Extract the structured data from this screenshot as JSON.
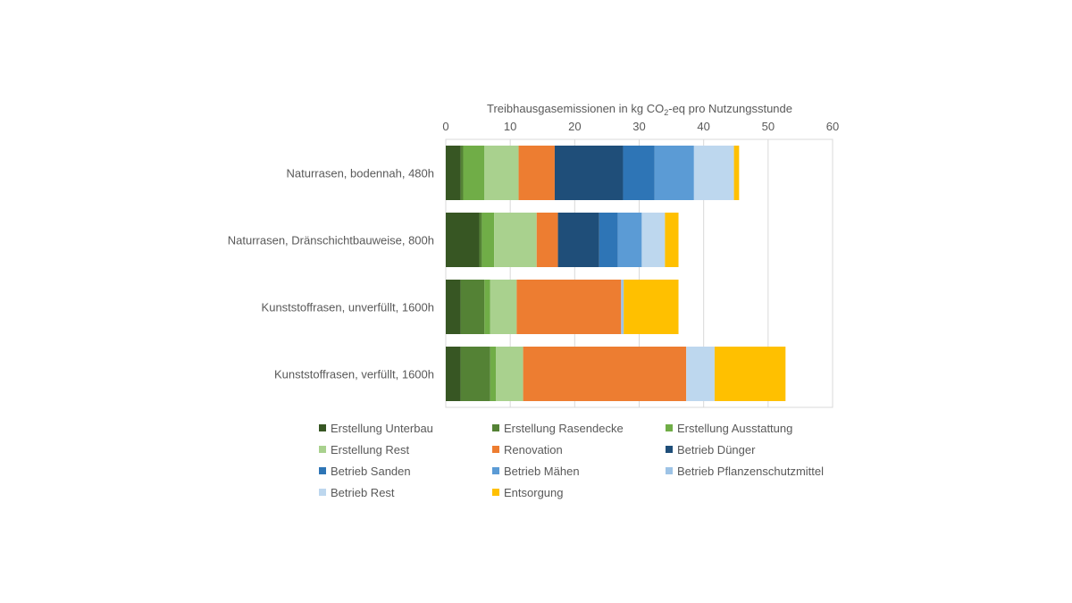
{
  "chart_data": {
    "type": "bar",
    "orientation": "horizontal",
    "stacked": true,
    "title": "",
    "xlabel_parts": [
      "Treibhausgasemissionen in kg CO",
      "2",
      "-eq pro Nutzungsstunde"
    ],
    "xlim": [
      0,
      60
    ],
    "xticks": [
      "0",
      "10",
      "20",
      "30",
      "40",
      "50",
      "60"
    ],
    "x_axis_position": "top",
    "grid": "vertical",
    "legend_position": "bottom",
    "categories": [
      "Naturrasen, bodennah, 480h",
      "Naturrasen, Dränschichtbauweise, 800h",
      "Kunststoffrasen, unverfüllt, 1600h",
      "Kunststoffrasen, verfüllt, 1600h"
    ],
    "series": [
      {
        "name": "Erstellung Unterbau",
        "color": "#375623",
        "values": [
          2.3,
          5.2,
          2.3,
          2.3
        ]
      },
      {
        "name": "Erstellung Rasendecke",
        "color": "#548235",
        "values": [
          0.4,
          0.4,
          3.7,
          4.6
        ]
      },
      {
        "name": "Erstellung Ausstattung",
        "color": "#70AD47",
        "values": [
          3.3,
          1.9,
          0.9,
          0.9
        ]
      },
      {
        "name": "Erstellung Rest",
        "color": "#A9D18E",
        "values": [
          5.3,
          6.6,
          4.1,
          4.2
        ]
      },
      {
        "name": "Renovation",
        "color": "#ED7D31",
        "values": [
          5.6,
          3.3,
          16.2,
          25.3
        ]
      },
      {
        "name": "Betrieb Dünger",
        "color": "#1F4E79",
        "values": [
          10.6,
          6.4,
          0,
          0
        ]
      },
      {
        "name": "Betrieb Sanden",
        "color": "#2E75B6",
        "values": [
          4.9,
          2.9,
          0,
          0
        ]
      },
      {
        "name": "Betrieb Mähen",
        "color": "#5B9BD5",
        "values": [
          6.1,
          3.7,
          0,
          0
        ]
      },
      {
        "name": "Betrieb Pflanzenschutzmittel",
        "color": "#9DC3E6",
        "values": [
          0,
          0,
          0.4,
          0
        ]
      },
      {
        "name": "Betrieb Rest",
        "color": "#BDD7EE",
        "values": [
          6.2,
          3.6,
          0,
          4.4
        ]
      },
      {
        "name": "Entsorgung",
        "color": "#FFC000",
        "values": [
          0.8,
          2.1,
          8.5,
          11.0
        ]
      }
    ]
  }
}
